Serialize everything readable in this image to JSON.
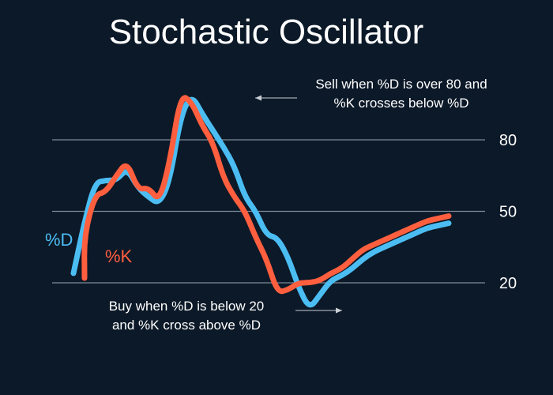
{
  "chart_data": {
    "type": "line",
    "title": "Stochastic Oscillator",
    "ylim": [
      0,
      100
    ],
    "y_ticks": [
      {
        "label": "80",
        "value": 80
      },
      {
        "label": "50",
        "value": 50
      },
      {
        "label": "20",
        "value": 20
      }
    ],
    "grid": true,
    "series": [
      {
        "name": "%D",
        "color": "#4bbdf3",
        "x": [
          0,
          2,
          4,
          6,
          8,
          10,
          12,
          14,
          16,
          18,
          20,
          22,
          24,
          26,
          28,
          30,
          32,
          34,
          36,
          38,
          40,
          42,
          44,
          46,
          48,
          50,
          52,
          54,
          56,
          58,
          60,
          62,
          64,
          66,
          68,
          70
        ],
        "values": [
          24,
          45,
          62,
          63,
          63,
          68,
          60,
          56,
          53,
          63,
          90,
          99,
          91,
          84,
          77,
          69,
          56,
          50,
          40,
          39,
          31,
          18,
          9,
          15,
          21,
          23,
          26,
          30,
          33,
          35,
          37,
          39,
          41,
          43,
          44,
          45
        ]
      },
      {
        "name": "%K",
        "color": "#ff5f3e",
        "x": [
          0,
          2,
          4,
          6,
          8,
          10,
          12,
          14,
          16,
          18,
          20,
          22,
          24,
          26,
          28,
          30,
          32,
          34,
          36,
          38,
          40,
          42,
          44,
          46,
          48,
          50,
          52,
          54,
          56,
          58,
          60,
          62,
          64,
          66,
          68,
          70
        ],
        "values": [
          22,
          40,
          57,
          58,
          65,
          71,
          59,
          60,
          54,
          71,
          99,
          96,
          86,
          79,
          64,
          56,
          50,
          39,
          30,
          16,
          17,
          20,
          20,
          21,
          24,
          26,
          30,
          34,
          36,
          38,
          40,
          42,
          44,
          46,
          47,
          48
        ]
      }
    ],
    "annotations": [
      {
        "lines": [
          "Sell when %D is over 80 and",
          "%K crosses below %D"
        ]
      },
      {
        "lines": [
          "Buy when %D is below 20",
          "and %K cross above %D"
        ]
      }
    ]
  }
}
